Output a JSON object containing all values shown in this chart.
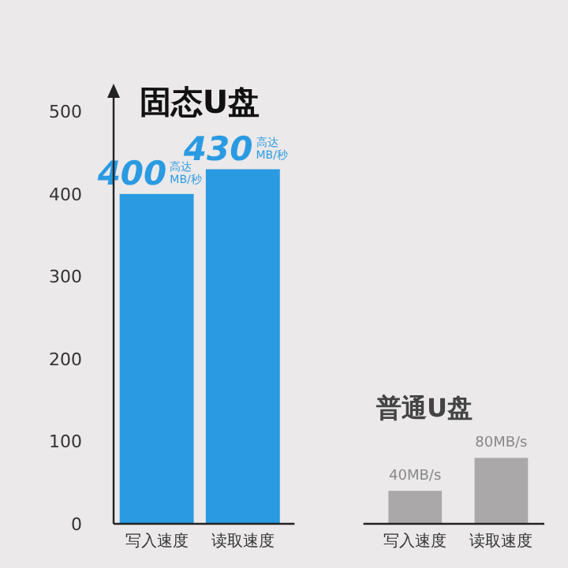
{
  "chart_data": {
    "type": "bar",
    "categories": [
      "写入速度",
      "读取速度",
      null,
      "写入速度",
      "读取速度"
    ],
    "values": [
      400,
      430,
      null,
      40,
      80
    ],
    "colors": [
      "#2a9be2",
      "#2a9be2",
      null,
      "#aaa8a8",
      "#aaa8a8"
    ],
    "value_labels": [
      "400高达MB/秒",
      "430高达MB/秒",
      null,
      "40MB/s",
      "80MB/s"
    ],
    "ylim": [
      0,
      530
    ],
    "yticks": [
      0,
      100,
      200,
      300,
      400,
      500
    ],
    "annotations": [
      "固态U盘",
      "普通U盘"
    ]
  }
}
